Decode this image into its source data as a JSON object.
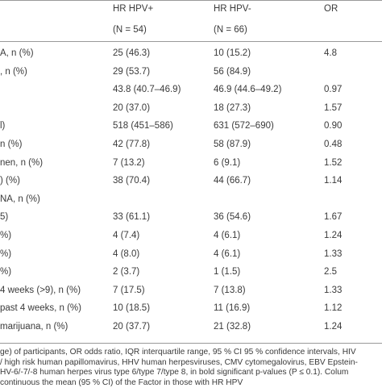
{
  "table": {
    "header": [
      "HR HPV+",
      "HR HPV-",
      "OR"
    ],
    "subheader": [
      "(N = 54)",
      "(N = 66)"
    ],
    "rows": [
      {
        "label": "A, n (%)",
        "pos": "25 (46.3)",
        "neg": "10 (15.2)",
        "or": "4.8"
      },
      {
        "label": ", n (%)",
        "pos": "29 (53.7)",
        "neg": "56 (84.9)"
      },
      {
        "pos": "43.8 (40.7–46.9)",
        "neg": "46.9 (44.6–49.2)",
        "or": "0.97"
      },
      {
        "pos": "20 (37.0)",
        "neg": "18 (27.3)",
        "or": "1.57"
      },
      {
        "label": "l)",
        "pos": "518 (451–586)",
        "neg": "631 (572–690)",
        "or": "0.90"
      },
      {
        "label": "n (%)",
        "pos": "42 (77.8)",
        "neg": "58 (87.9)",
        "or": "0.48"
      },
      {
        "label": "nen, n (%)",
        "pos": "7 (13.2)",
        "neg": "6 (9.1)",
        "or": "1.52"
      },
      {
        "label": ") (%)",
        "pos": "38 (70.4)",
        "neg": "44 (66.7)",
        "or": "1.14"
      },
      {
        "label": "NA, n (%)"
      },
      {
        "label": "5)",
        "pos": "33 (61.1)",
        "neg": "36 (54.6)",
        "or": "1.67"
      },
      {
        "label": "%)",
        "pos": "4 (7.4)",
        "neg": "4 (6.1)",
        "or": "1.24"
      },
      {
        "label": "%)",
        "pos": "4 (8.0)",
        "neg": "4 (6.1)",
        "or": "1.33"
      },
      {
        "label": "%)",
        "pos": "2 (3.7)",
        "neg": "1 (1.5)",
        "or": "2.5"
      },
      {
        "label": "4 weeks (>9), n (%)",
        "pos": "7 (17.5)",
        "neg": "7 (13.8)",
        "or": "1.33"
      },
      {
        "label": "past 4 weeks, n (%)",
        "pos": "10 (18.5)",
        "neg": "11 (16.9)",
        "or": "1.12"
      },
      {
        "label": "marijuana, n (%)",
        "pos": "20 (37.7)",
        "neg": "21 (32.8)",
        "or": "1.24"
      }
    ]
  },
  "footnotes": [
    "ge) of participants, OR odds ratio, IQR interquartile range, 95 % CI 95 % confidence intervals, HIV",
    "/ high risk human papillomavirus, HHV human herpesviruses, CMV cytomegalovirus, EBV Epstein-",
    "HV-6/-7/-8 human herpes virus type 6/type 7/type 8, in bold significant p-values (P ≤ 0.1). Colum",
    "continuous the mean (95 % CI) of the Factor in those with HR HPV"
  ]
}
